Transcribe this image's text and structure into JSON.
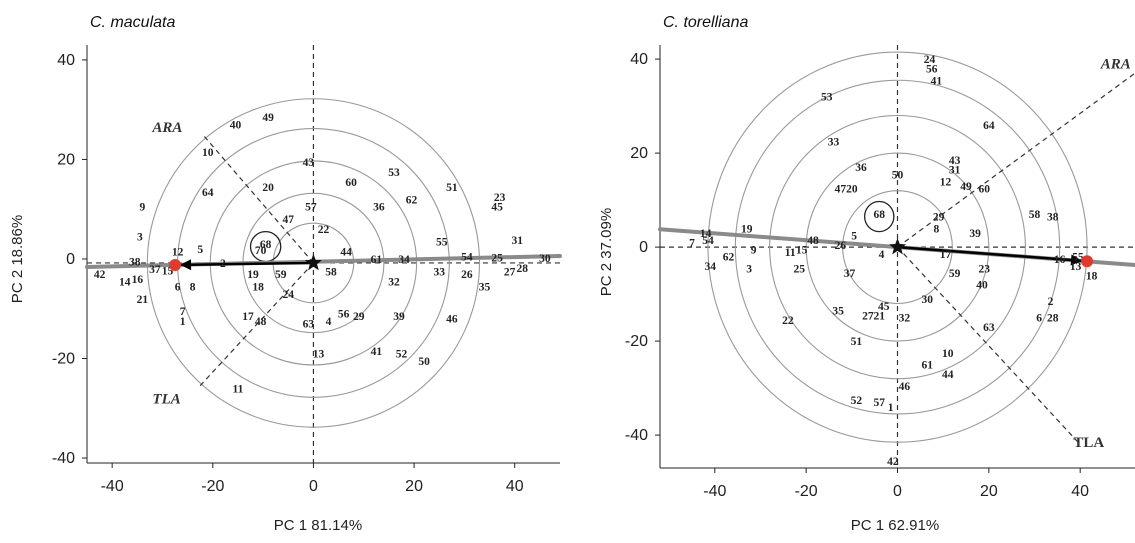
{
  "chart_data": [
    {
      "type": "scatter",
      "title": "C. maculata",
      "xlabel": "PC 1  81.14%",
      "ylabel": "PC 2  18.86%",
      "xlim": [
        -45,
        49
      ],
      "ylim": [
        -41,
        43
      ],
      "xticks": [
        -40,
        -20,
        0,
        20,
        40
      ],
      "yticks": [
        -40,
        -20,
        0,
        20,
        40
      ],
      "center": [
        0,
        -0.8
      ],
      "ring_radii": [
        8,
        14,
        20.5,
        27,
        33
      ],
      "small_circle": {
        "center": [
          -9.5,
          2.5
        ],
        "r": 3
      },
      "ideal_point": [
        -27.5,
        -1.2
      ],
      "guide_line": [
        [
          -45,
          -1.6
        ],
        [
          49,
          0.6
        ]
      ],
      "vectors": [
        {
          "label": "ARA",
          "from": [
            0,
            -0.8
          ],
          "to": [
            -22,
            25
          ]
        },
        {
          "label": "TLA",
          "from": [
            0,
            -0.8
          ],
          "to": [
            -23,
            -26
          ]
        }
      ],
      "vector_labels": [
        {
          "text": "ARA",
          "x": -32,
          "y": 25.5
        },
        {
          "text": "TLA",
          "x": -32,
          "y": -29
        }
      ],
      "points": [
        {
          "id": "49",
          "x": -9,
          "y": 28.5
        },
        {
          "id": "40",
          "x": -15.5,
          "y": 27
        },
        {
          "id": "10",
          "x": -21,
          "y": 21.5
        },
        {
          "id": "43",
          "x": -1,
          "y": 19.5
        },
        {
          "id": "53",
          "x": 16,
          "y": 17.5
        },
        {
          "id": "60",
          "x": 7.5,
          "y": 15.5
        },
        {
          "id": "51",
          "x": 27.5,
          "y": 14.5
        },
        {
          "id": "23",
          "x": 37,
          "y": 12.5
        },
        {
          "id": "45",
          "x": 36.5,
          "y": 10.5
        },
        {
          "id": "62",
          "x": 19.5,
          "y": 12
        },
        {
          "id": "36",
          "x": 13,
          "y": 10.5
        },
        {
          "id": "64",
          "x": -21,
          "y": 13.5
        },
        {
          "id": "20",
          "x": -9,
          "y": 14.5
        },
        {
          "id": "9",
          "x": -34,
          "y": 10.5
        },
        {
          "id": "57",
          "x": -0.5,
          "y": 10.5
        },
        {
          "id": "22",
          "x": 2,
          "y": 6
        },
        {
          "id": "47",
          "x": -5,
          "y": 8
        },
        {
          "id": "31",
          "x": 40.5,
          "y": 3.8
        },
        {
          "id": "55",
          "x": 25.5,
          "y": 3.5
        },
        {
          "id": "3",
          "x": -34.5,
          "y": 4.5
        },
        {
          "id": "12",
          "x": -27,
          "y": 1.5
        },
        {
          "id": "5",
          "x": -22.5,
          "y": 2
        },
        {
          "id": "68",
          "x": -9.5,
          "y": 3
        },
        {
          "id": "70",
          "x": -10.5,
          "y": 1.8
        },
        {
          "id": "44",
          "x": 6.5,
          "y": 1.5
        },
        {
          "id": "61",
          "x": 12.5,
          "y": 0
        },
        {
          "id": "34",
          "x": 18,
          "y": 0
        },
        {
          "id": "54",
          "x": 30.5,
          "y": 0.5
        },
        {
          "id": "25",
          "x": 36.5,
          "y": 0.3
        },
        {
          "id": "30",
          "x": 46,
          "y": 0.2
        },
        {
          "id": "38",
          "x": -35.5,
          "y": -0.5
        },
        {
          "id": "2",
          "x": -18,
          "y": -0.8
        },
        {
          "id": "37",
          "x": -31.5,
          "y": -2
        },
        {
          "id": "15",
          "x": -29,
          "y": -2.3
        },
        {
          "id": "42",
          "x": -42.5,
          "y": -3
        },
        {
          "id": "16",
          "x": -35,
          "y": -4
        },
        {
          "id": "14",
          "x": -37.5,
          "y": -4.5
        },
        {
          "id": "6",
          "x": -27,
          "y": -5.5
        },
        {
          "id": "8",
          "x": -24,
          "y": -5.5
        },
        {
          "id": "19",
          "x": -12,
          "y": -3
        },
        {
          "id": "59",
          "x": -6.5,
          "y": -3
        },
        {
          "id": "58",
          "x": 3.5,
          "y": -2.5
        },
        {
          "id": "18",
          "x": -11,
          "y": -5.5
        },
        {
          "id": "33",
          "x": 25,
          "y": -2.5
        },
        {
          "id": "26",
          "x": 30.5,
          "y": -3
        },
        {
          "id": "27",
          "x": 39,
          "y": -2.5
        },
        {
          "id": "28",
          "x": 41.5,
          "y": -1.8
        },
        {
          "id": "32",
          "x": 16,
          "y": -4.5
        },
        {
          "id": "35",
          "x": 34,
          "y": -5.5
        },
        {
          "id": "21",
          "x": -34,
          "y": -8
        },
        {
          "id": "24",
          "x": -5,
          "y": -7
        },
        {
          "id": "7",
          "x": -26,
          "y": -10.5
        },
        {
          "id": "1",
          "x": -26,
          "y": -12.5
        },
        {
          "id": "17",
          "x": -13,
          "y": -11.5
        },
        {
          "id": "48",
          "x": -10.5,
          "y": -12.5
        },
        {
          "id": "56",
          "x": 6,
          "y": -11
        },
        {
          "id": "29",
          "x": 9,
          "y": -11.5
        },
        {
          "id": "4",
          "x": 3,
          "y": -12.5
        },
        {
          "id": "39",
          "x": 17,
          "y": -11.5
        },
        {
          "id": "46",
          "x": 27.5,
          "y": -12
        },
        {
          "id": "63",
          "x": -1,
          "y": -13
        },
        {
          "id": "13",
          "x": 1,
          "y": -19
        },
        {
          "id": "41",
          "x": 12.5,
          "y": -18.5
        },
        {
          "id": "52",
          "x": 17.5,
          "y": -19
        },
        {
          "id": "50",
          "x": 22,
          "y": -20.5
        },
        {
          "id": "11",
          "x": -15,
          "y": -26
        }
      ]
    },
    {
      "type": "scatter",
      "title": "C. torelliana",
      "xlabel": "PC 1  62.91%",
      "ylabel": "PC 2  37.09%",
      "xlim": [
        -52,
        52
      ],
      "ylim": [
        -47,
        43
      ],
      "xticks": [
        -40,
        -20,
        0,
        20,
        40
      ],
      "yticks": [
        -40,
        -20,
        0,
        20,
        40
      ],
      "center": [
        0,
        0
      ],
      "ring_radii": [
        12,
        20,
        28,
        35.5,
        41.5
      ],
      "small_circle": {
        "center": [
          -4,
          6.5
        ],
        "r": 3.2
      },
      "ideal_point": [
        41.5,
        -3
      ],
      "guide_line": [
        [
          -52,
          3.8
        ],
        [
          52,
          -3.8
        ]
      ],
      "vectors": [
        {
          "label": "ARA",
          "from": [
            0,
            0
          ],
          "to": [
            52,
            37
          ]
        },
        {
          "label": "TLA",
          "from": [
            0,
            0
          ],
          "to": [
            40,
            -42
          ]
        }
      ],
      "vector_labels": [
        {
          "text": "ARA",
          "x": 44.5,
          "y": 38
        },
        {
          "text": "TLA",
          "x": 38.5,
          "y": -42.5
        }
      ],
      "points": [
        {
          "id": "24",
          "x": 7,
          "y": 40
        },
        {
          "id": "56",
          "x": 7.5,
          "y": 38
        },
        {
          "id": "41",
          "x": 8.5,
          "y": 35.5
        },
        {
          "id": "53",
          "x": -15.5,
          "y": 32
        },
        {
          "id": "64",
          "x": 20,
          "y": 26
        },
        {
          "id": "33",
          "x": -14,
          "y": 22.5
        },
        {
          "id": "43",
          "x": 12.5,
          "y": 18.5
        },
        {
          "id": "36",
          "x": -8,
          "y": 17
        },
        {
          "id": "31",
          "x": 12.5,
          "y": 16.5
        },
        {
          "id": "50",
          "x": 0,
          "y": 15.5
        },
        {
          "id": "12",
          "x": 10.5,
          "y": 14
        },
        {
          "id": "49",
          "x": 15,
          "y": 13
        },
        {
          "id": "60",
          "x": 19,
          "y": 12.5
        },
        {
          "id": "47",
          "x": -12.5,
          "y": 12.5
        },
        {
          "id": "20",
          "x": -10,
          "y": 12.5
        },
        {
          "id": "58",
          "x": 30,
          "y": 7
        },
        {
          "id": "38",
          "x": 34,
          "y": 6.5
        },
        {
          "id": "68",
          "x": -4,
          "y": 7
        },
        {
          "id": "29",
          "x": 9,
          "y": 6.5
        },
        {
          "id": "8",
          "x": 8.5,
          "y": 4
        },
        {
          "id": "39",
          "x": 17,
          "y": 3
        },
        {
          "id": "5",
          "x": -9.5,
          "y": 2.5
        },
        {
          "id": "19",
          "x": -33,
          "y": 4
        },
        {
          "id": "14",
          "x": -42,
          "y": 3
        },
        {
          "id": "7",
          "x": -45,
          "y": 1
        },
        {
          "id": "54",
          "x": -41.5,
          "y": 1.5
        },
        {
          "id": "48",
          "x": -18.5,
          "y": 1.5
        },
        {
          "id": "26",
          "x": -12.5,
          "y": 0.5
        },
        {
          "id": "11",
          "x": -23.5,
          "y": -1
        },
        {
          "id": "15",
          "x": -21,
          "y": -0.5
        },
        {
          "id": "9",
          "x": -31.5,
          "y": -0.5
        },
        {
          "id": "62",
          "x": -37,
          "y": -2
        },
        {
          "id": "4",
          "x": -3.5,
          "y": -1.5
        },
        {
          "id": "17",
          "x": 10.5,
          "y": -1.5
        },
        {
          "id": "16",
          "x": 35.5,
          "y": -2.5
        },
        {
          "id": "55",
          "x": 39.5,
          "y": -2
        },
        {
          "id": "34",
          "x": -41,
          "y": -4
        },
        {
          "id": "3",
          "x": -32.5,
          "y": -4.5
        },
        {
          "id": "25",
          "x": -21.5,
          "y": -4.5
        },
        {
          "id": "23",
          "x": 19,
          "y": -4.5
        },
        {
          "id": "13",
          "x": 39,
          "y": -4
        },
        {
          "id": "18",
          "x": 42.5,
          "y": -6
        },
        {
          "id": "37",
          "x": -10.5,
          "y": -5.5
        },
        {
          "id": "59",
          "x": 12.5,
          "y": -5.5
        },
        {
          "id": "40",
          "x": 18.5,
          "y": -8
        },
        {
          "id": "30",
          "x": 6.5,
          "y": -11
        },
        {
          "id": "2",
          "x": 33.5,
          "y": -11.5
        },
        {
          "id": "45",
          "x": -3,
          "y": -12.5
        },
        {
          "id": "35",
          "x": -13,
          "y": -13.5
        },
        {
          "id": "27",
          "x": -6.5,
          "y": -14.5
        },
        {
          "id": "21",
          "x": -4,
          "y": -14.5
        },
        {
          "id": "32",
          "x": 1.5,
          "y": -15
        },
        {
          "id": "6",
          "x": 31,
          "y": -15
        },
        {
          "id": "28",
          "x": 34,
          "y": -15
        },
        {
          "id": "22",
          "x": -24,
          "y": -15.5
        },
        {
          "id": "63",
          "x": 20,
          "y": -17
        },
        {
          "id": "51",
          "x": -9,
          "y": -20
        },
        {
          "id": "10",
          "x": 11,
          "y": -22.5
        },
        {
          "id": "61",
          "x": 6.5,
          "y": -25
        },
        {
          "id": "44",
          "x": 11,
          "y": -27
        },
        {
          "id": "46",
          "x": 1.5,
          "y": -29.5
        },
        {
          "id": "52",
          "x": -9,
          "y": -32.5
        },
        {
          "id": "57",
          "x": -4,
          "y": -33
        },
        {
          "id": "1",
          "x": -1.5,
          "y": -34
        },
        {
          "id": "42",
          "x": -1,
          "y": -45.5
        }
      ]
    }
  ]
}
